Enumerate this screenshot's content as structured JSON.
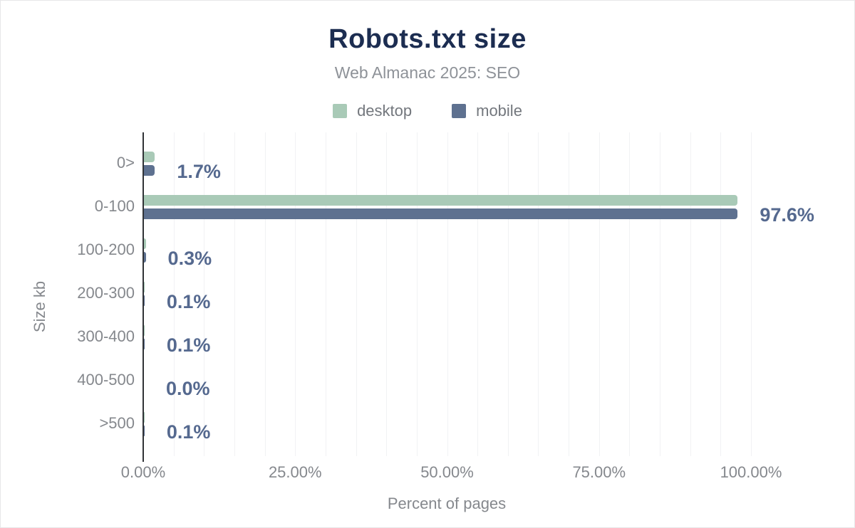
{
  "header": {
    "title": "Robots.txt size",
    "subtitle": "Web Almanac 2025: SEO"
  },
  "colors": {
    "title": "#1c2d51",
    "subtitle_gray": "#8e9298",
    "axis_text_gray": "#85888d",
    "value_label": "#55698f",
    "desktop": "#a9cab7",
    "mobile": "#5e7190",
    "gridline": "#f1f2f4",
    "axis_line": "#303236"
  },
  "chart_data": {
    "type": "bar",
    "orientation": "horizontal",
    "title": "Robots.txt size",
    "subtitle": "Web Almanac 2025: SEO",
    "categories": [
      "0>",
      "0-100",
      "100-200",
      "200-300",
      "300-400",
      "400-500",
      ">500"
    ],
    "series": [
      {
        "name": "desktop",
        "color": "#a9cab7",
        "values": [
          1.8,
          97.7,
          0.3,
          0.1,
          0.1,
          0.0,
          0.1
        ]
      },
      {
        "name": "mobile",
        "color": "#5e7190",
        "values": [
          1.7,
          97.6,
          0.3,
          0.1,
          0.1,
          0.0,
          0.1
        ]
      }
    ],
    "value_labels": [
      "1.7%",
      "97.6%",
      "0.3%",
      "0.1%",
      "0.1%",
      "0.0%",
      "0.1%"
    ],
    "xlabel": "Percent of pages",
    "ylabel": "Size kb",
    "x_ticks": [
      "0.00%",
      "25.00%",
      "50.00%",
      "75.00%",
      "100.00%"
    ],
    "x_tick_values": [
      0,
      25,
      50,
      75,
      100
    ],
    "xlim": [
      0,
      100
    ],
    "grid": "vertical minor gridlines every 5%",
    "legend_position": "top-center"
  }
}
